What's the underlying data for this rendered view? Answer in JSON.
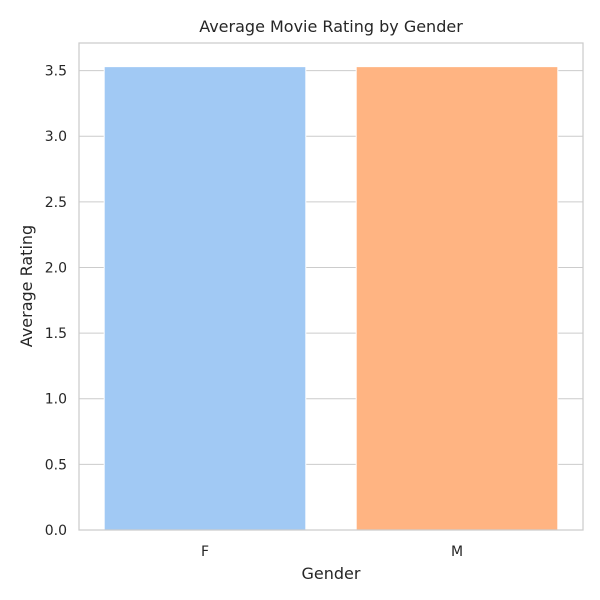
{
  "chart_data": {
    "type": "bar",
    "title": "Average Movie Rating by Gender",
    "xlabel": "Gender",
    "ylabel": "Average Rating",
    "categories": [
      "F",
      "M"
    ],
    "values": [
      3.53,
      3.53
    ],
    "colors": [
      "#a1c9f4",
      "#ffb482"
    ],
    "ylim": [
      0,
      3.71
    ],
    "yticks": [
      "0.0",
      "0.5",
      "1.0",
      "1.5",
      "2.0",
      "2.5",
      "3.0",
      "3.5"
    ],
    "grid": "horizontal",
    "legend": "none"
  }
}
